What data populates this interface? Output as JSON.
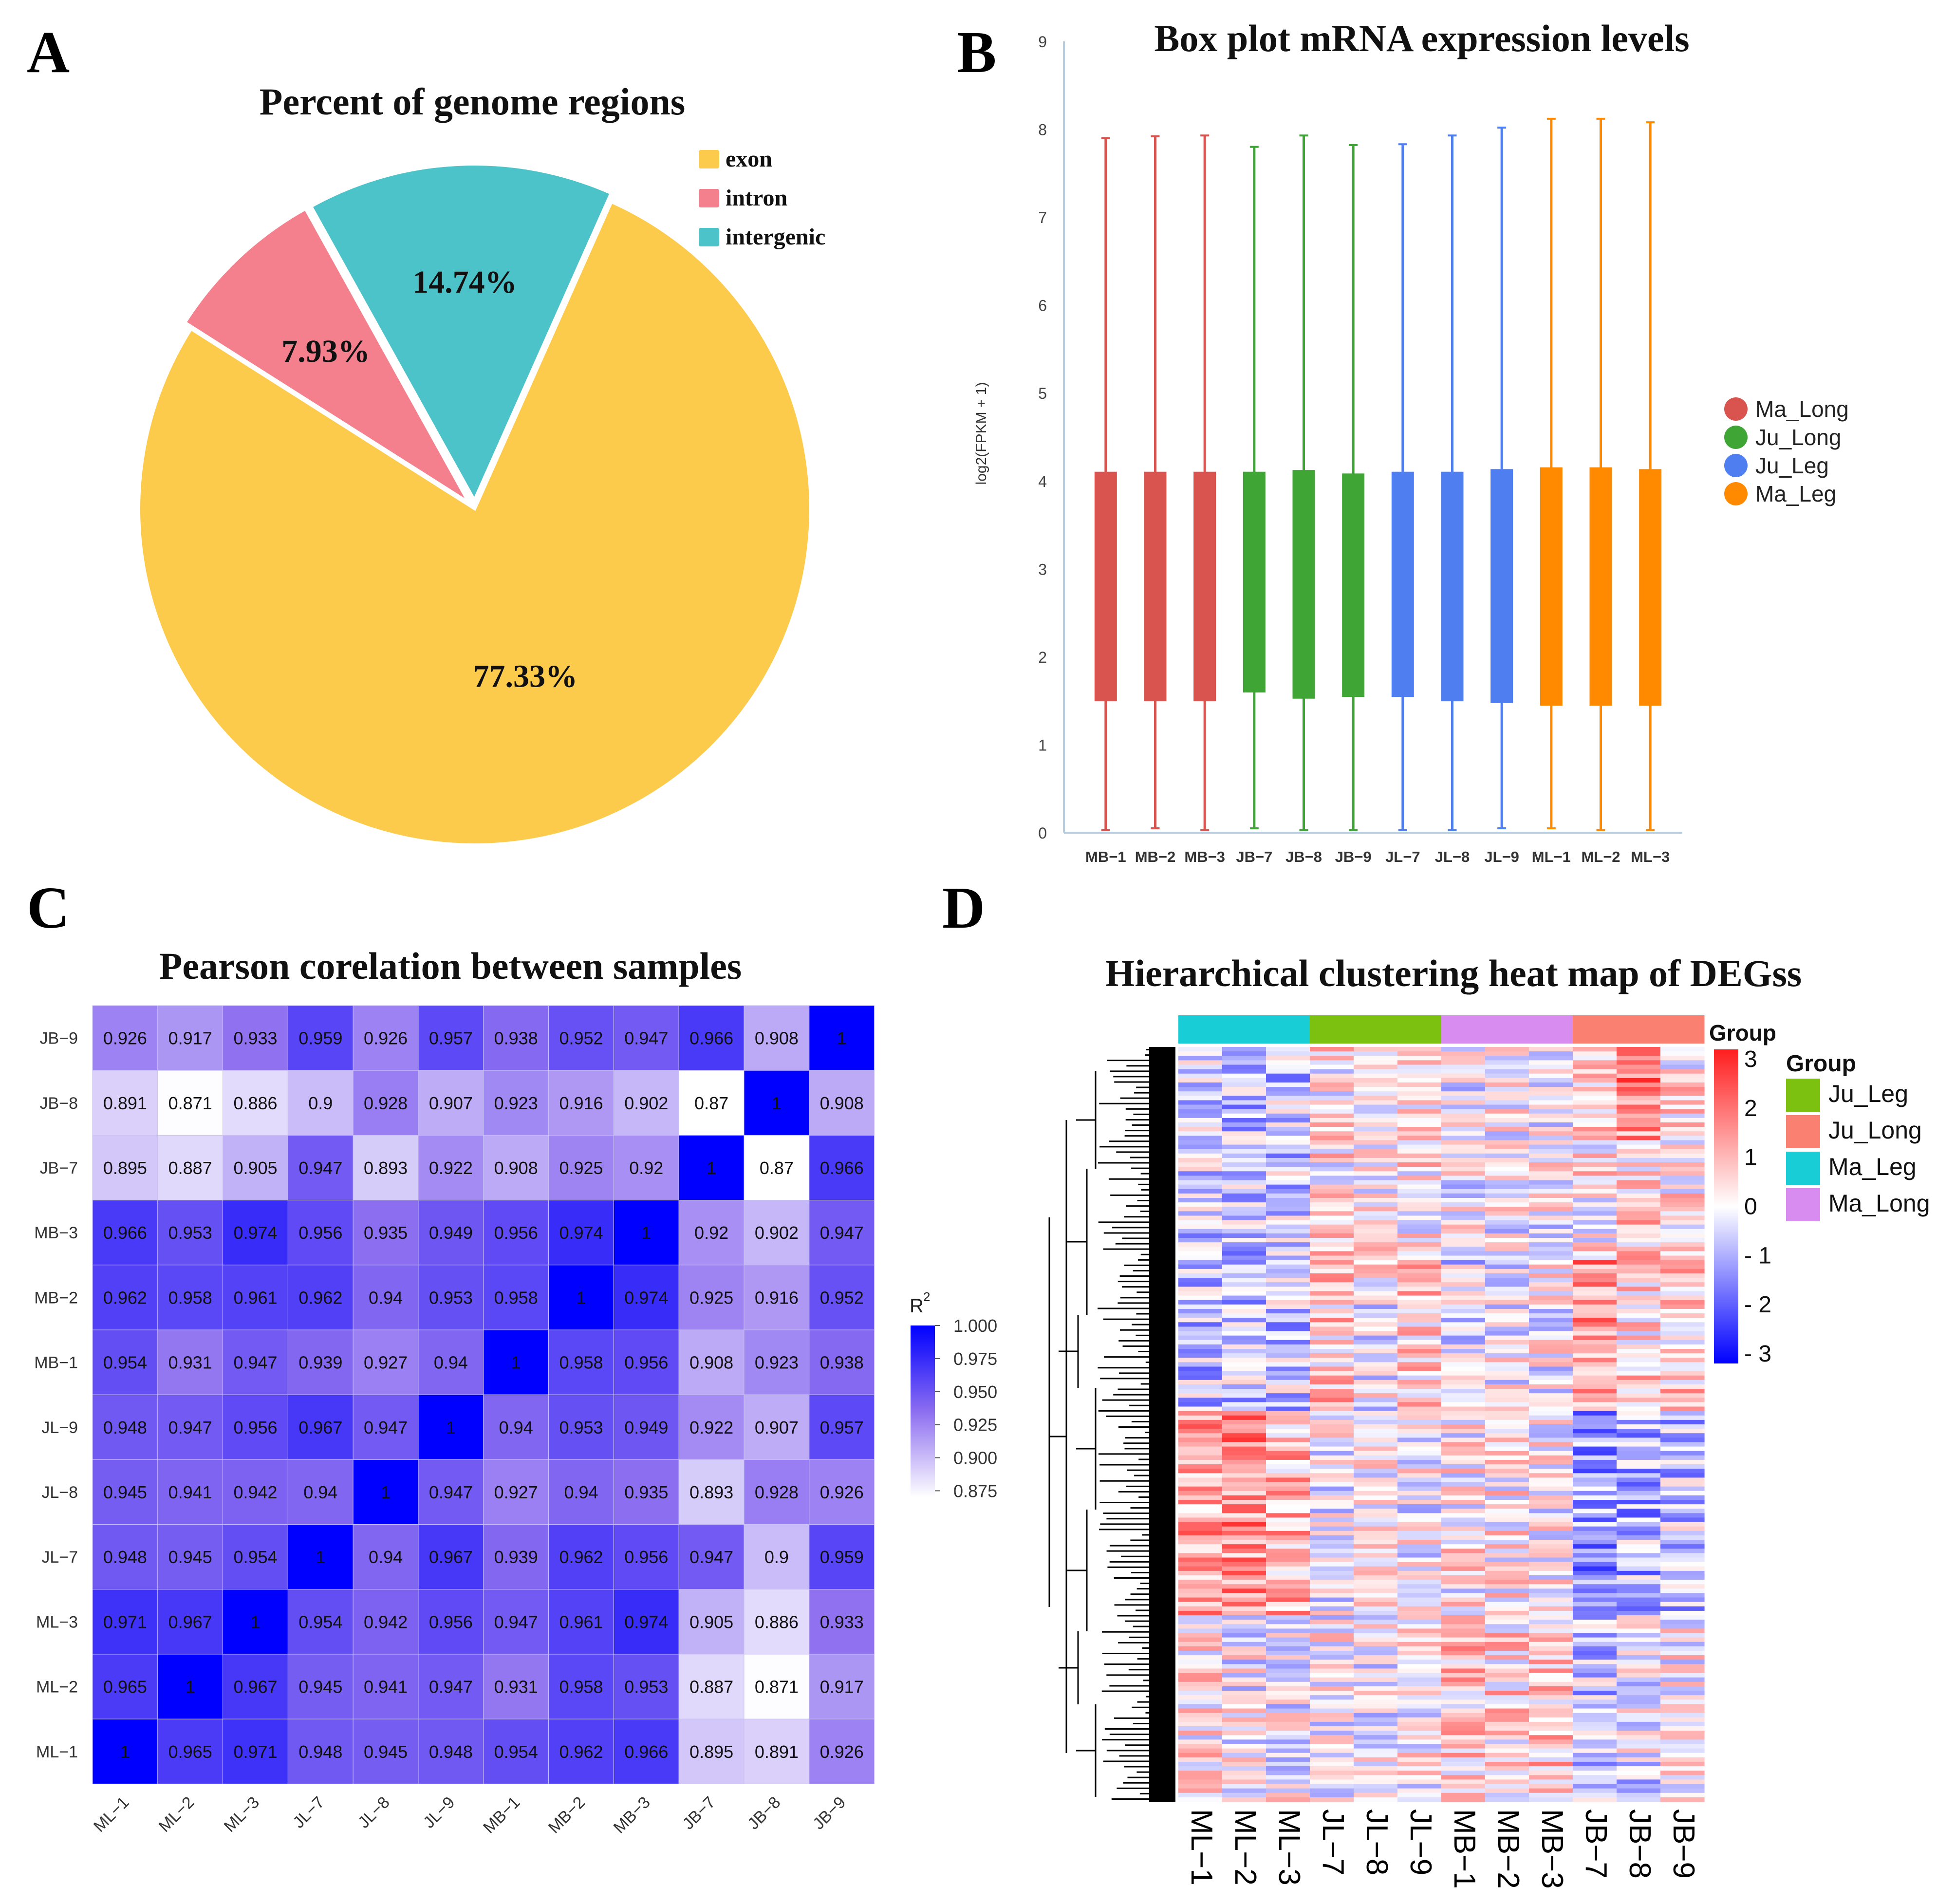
{
  "colors": {
    "exon": "#fdcb4c",
    "intron": "#f4808e",
    "intergenic": "#4bc3c9",
    "Ma_Long_box": "#d9534f",
    "Ju_Long_box": "#3fa535",
    "Ju_Leg_box": "#4f7ef0",
    "Ma_Leg_box": "#ff8a00",
    "heat_Ju_Leg": "#7cc110",
    "heat_Ju_Long": "#fa8072",
    "heat_Ma_Leg": "#19cdd6",
    "heat_Ma_Long": "#d98cf0"
  },
  "panels": {
    "A": "A",
    "B": "B",
    "C": "C",
    "D": "D"
  },
  "chart_data": [
    {
      "id": "A",
      "type": "pie",
      "title": "Percent of genome regions",
      "slices": [
        {
          "name": "exon",
          "value": 77.33,
          "label": "77.33%"
        },
        {
          "name": "intron",
          "value": 7.93,
          "label": "7.93%"
        },
        {
          "name": "intergenic",
          "value": 14.74,
          "label": "14.74%"
        }
      ],
      "legend": [
        "exon",
        "intron",
        "intergenic"
      ],
      "legend_position": "top-right"
    },
    {
      "id": "B",
      "type": "box",
      "title": "Box plot mRNA expression levels",
      "ylabel": "log2(FPKM + 1)",
      "xlabel": "",
      "ylim": [
        0,
        9
      ],
      "yticks": [
        "0",
        "1",
        "2",
        "3",
        "4",
        "5",
        "6",
        "7",
        "8",
        "9"
      ],
      "categories": [
        "MB−1",
        "MB−2",
        "MB−3",
        "JB−7",
        "JB−8",
        "JB−9",
        "JL−7",
        "JL−8",
        "JL−9",
        "ML−1",
        "ML−2",
        "ML−3"
      ],
      "groups": [
        "Ma_Long",
        "Ma_Long",
        "Ma_Long",
        "Ju_Long",
        "Ju_Long",
        "Ju_Long",
        "Ju_Leg",
        "Ju_Leg",
        "Ju_Leg",
        "Ma_Leg",
        "Ma_Leg",
        "Ma_Leg"
      ],
      "q1": [
        1.5,
        1.5,
        1.5,
        1.6,
        1.53,
        1.55,
        1.55,
        1.5,
        1.48,
        1.45,
        1.45,
        1.45
      ],
      "q3": [
        4.1,
        4.1,
        4.1,
        4.1,
        4.12,
        4.08,
        4.1,
        4.1,
        4.13,
        4.15,
        4.15,
        4.13
      ],
      "whisker_low": [
        0.03,
        0.05,
        0.03,
        0.05,
        0.03,
        0.03,
        0.03,
        0.03,
        0.05,
        0.05,
        0.03,
        0.03
      ],
      "whisker_high": [
        7.9,
        7.92,
        7.93,
        7.8,
        7.93,
        7.82,
        7.83,
        7.93,
        8.02,
        8.12,
        8.12,
        8.08
      ],
      "legend": [
        "Ma_Long",
        "Ju_Long",
        "Ju_Leg",
        "Ma_Leg"
      ],
      "legend_position": "right"
    },
    {
      "id": "C",
      "type": "heatmap",
      "title": "Pearson corelation between samples",
      "rows": [
        "JB−9",
        "JB−8",
        "JB−7",
        "MB−3",
        "MB−2",
        "MB−1",
        "JL−9",
        "JL−8",
        "JL−7",
        "ML−3",
        "ML−2",
        "ML−1"
      ],
      "cols": [
        "ML−1",
        "ML−2",
        "ML−3",
        "JL−7",
        "JL−8",
        "JL−9",
        "MB−1",
        "MB−2",
        "MB−3",
        "JB−7",
        "JB−8",
        "JB−9"
      ],
      "values": [
        [
          "0.926",
          "0.917",
          "0.933",
          "0.959",
          "0.926",
          "0.957",
          "0.938",
          "0.952",
          "0.947",
          "0.966",
          "0.908",
          "1"
        ],
        [
          "0.891",
          "0.871",
          "0.886",
          "0.9",
          "0.928",
          "0.907",
          "0.923",
          "0.916",
          "0.902",
          "0.87",
          "1",
          "0.908"
        ],
        [
          "0.895",
          "0.887",
          "0.905",
          "0.947",
          "0.893",
          "0.922",
          "0.908",
          "0.925",
          "0.92",
          "1",
          "0.87",
          "0.966"
        ],
        [
          "0.966",
          "0.953",
          "0.974",
          "0.956",
          "0.935",
          "0.949",
          "0.956",
          "0.974",
          "1",
          "0.92",
          "0.902",
          "0.947"
        ],
        [
          "0.962",
          "0.958",
          "0.961",
          "0.962",
          "0.94",
          "0.953",
          "0.958",
          "1",
          "0.974",
          "0.925",
          "0.916",
          "0.952"
        ],
        [
          "0.954",
          "0.931",
          "0.947",
          "0.939",
          "0.927",
          "0.94",
          "1",
          "0.958",
          "0.956",
          "0.908",
          "0.923",
          "0.938"
        ],
        [
          "0.948",
          "0.947",
          "0.956",
          "0.967",
          "0.947",
          "1",
          "0.94",
          "0.953",
          "0.949",
          "0.922",
          "0.907",
          "0.957"
        ],
        [
          "0.945",
          "0.941",
          "0.942",
          "0.94",
          "1",
          "0.947",
          "0.927",
          "0.94",
          "0.935",
          "0.893",
          "0.928",
          "0.926"
        ],
        [
          "0.948",
          "0.945",
          "0.954",
          "1",
          "0.94",
          "0.967",
          "0.939",
          "0.962",
          "0.956",
          "0.947",
          "0.9",
          "0.959"
        ],
        [
          "0.971",
          "0.967",
          "1",
          "0.954",
          "0.942",
          "0.956",
          "0.947",
          "0.961",
          "0.974",
          "0.905",
          "0.886",
          "0.933"
        ],
        [
          "0.965",
          "1",
          "0.967",
          "0.945",
          "0.941",
          "0.947",
          "0.931",
          "0.958",
          "0.953",
          "0.887",
          "0.871",
          "0.917"
        ],
        [
          "1",
          "0.965",
          "0.971",
          "0.948",
          "0.945",
          "0.948",
          "0.954",
          "0.962",
          "0.966",
          "0.895",
          "0.891",
          "0.926"
        ]
      ],
      "colorbar_title": "R",
      "colorbar_title_sup": "2",
      "colorbar_ticks": [
        "1.000",
        "0.975",
        "0.950",
        "0.925",
        "0.900",
        "0.875"
      ],
      "range": [
        0.87,
        1.0
      ]
    },
    {
      "id": "D",
      "type": "heatmap",
      "title": "Hierarchical clustering heat map of DEGss",
      "cols": [
        "ML−1",
        "ML−2",
        "ML−3",
        "JL−7",
        "JL−8",
        "JL−9",
        "MB−1",
        "MB−2",
        "MB−3",
        "JB−7",
        "JB−8",
        "JB−9"
      ],
      "col_groups": [
        "Ma_Leg",
        "Ma_Leg",
        "Ma_Leg",
        "Ju_Leg",
        "Ju_Leg",
        "Ju_Leg",
        "Ma_Long",
        "Ma_Long",
        "Ma_Long",
        "Ju_Long",
        "Ju_Long",
        "Ju_Long"
      ],
      "scale_ticks": [
        "3",
        "2",
        "1",
        "0",
        "- 1",
        "- 2",
        "- 3"
      ],
      "range": [
        -3,
        3
      ],
      "annotation_label": "Group",
      "legend_title": "Group",
      "legend": [
        "Ju_Leg",
        "Ju_Long",
        "Ma_Leg",
        "Ma_Long"
      ]
    }
  ]
}
